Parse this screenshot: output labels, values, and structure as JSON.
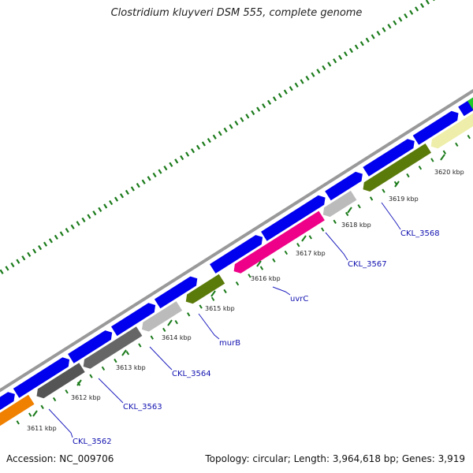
{
  "title": "Clostridium kluyveri DSM 555, complete genome",
  "footer": {
    "accession": "Accession: NC_009706",
    "stats": "Topology: circular; Length: 3,964,618 bp; Genes: 3,919"
  },
  "colors": {
    "backbone": "#999999",
    "forward_cds": "#0000ee",
    "tick": "#1a7a1a"
  },
  "ticks": [
    "3611 kbp",
    "3612 kbp",
    "3613 kbp",
    "3614 kbp",
    "3615 kbp",
    "3616 kbp",
    "3617 kbp",
    "3618 kbp",
    "3619 kbp",
    "3620 kbp"
  ],
  "gene_labels": [
    "CKL_3562",
    "CKL_3563",
    "CKL_3564",
    "murB",
    "uvrC",
    "CKL_3567",
    "CKL_3568"
  ]
}
